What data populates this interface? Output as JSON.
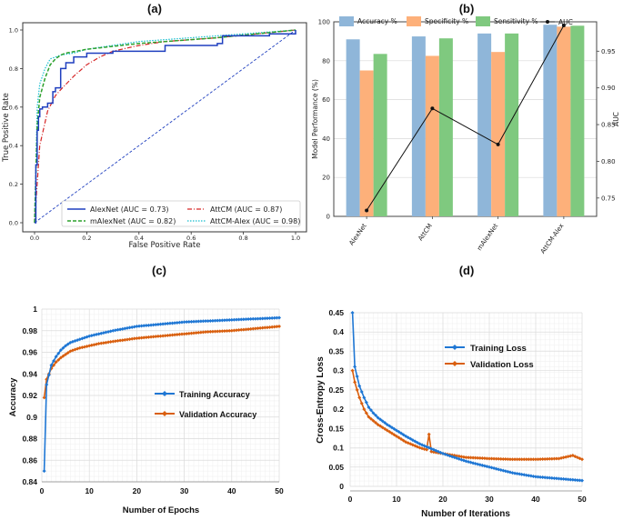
{
  "panel_labels": [
    "(a)",
    "(b)",
    "(c)",
    "(d)"
  ],
  "colors": {
    "alexnet": "#1f3fbf",
    "malexnet": "#2ca02c",
    "attcm": "#d62728",
    "attcm_alex": "#17becf",
    "accuracy": "#8fb6d9",
    "specificity": "#fdb07a",
    "sensitivity": "#7fc97f",
    "auc": "#111111",
    "train": "#1f77d4",
    "val": "#d95f0e"
  },
  "chart_data": [
    {
      "type": "line",
      "title": "(a)",
      "xlabel": "False Positive Rate",
      "ylabel": "True Positive Rate",
      "xlim": [
        0,
        1
      ],
      "ylim": [
        0,
        1
      ],
      "xticks": [
        "0.0",
        "0.2",
        "0.4",
        "0.6",
        "0.8",
        "1.0"
      ],
      "yticks": [
        "0.0",
        "0.2",
        "0.4",
        "0.6",
        "0.8",
        "1.0"
      ],
      "legend": [
        "AlexNet (AUC = 0.73)",
        "mAlexNet (AUC = 0.82)",
        "AttCM (AUC = 0.87)",
        "AttCM-Alex (AUC = 0.98)"
      ],
      "series": [
        {
          "name": "AlexNet (AUC = 0.73)",
          "x": [
            0,
            0.005,
            0.01,
            0.015,
            0.02,
            0.03,
            0.05,
            0.07,
            0.08,
            0.1,
            0.12,
            0.15,
            0.2,
            0.3,
            0.5,
            0.7,
            0.72,
            0.8,
            0.9,
            1.0
          ],
          "y": [
            0,
            0.3,
            0.48,
            0.55,
            0.59,
            0.6,
            0.62,
            0.68,
            0.7,
            0.8,
            0.83,
            0.86,
            0.88,
            0.89,
            0.92,
            0.93,
            0.97,
            0.97,
            0.98,
            1.0
          ]
        },
        {
          "name": "mAlexNet (AUC = 0.82)",
          "x": [
            0,
            0.01,
            0.02,
            0.04,
            0.06,
            0.08,
            0.1,
            0.12,
            0.2,
            0.4,
            0.7,
            1.0
          ],
          "y": [
            0,
            0.5,
            0.65,
            0.75,
            0.82,
            0.85,
            0.87,
            0.88,
            0.9,
            0.93,
            0.96,
            1.0
          ]
        },
        {
          "name": "AttCM (AUC = 0.87)",
          "x": [
            0,
            0.02,
            0.05,
            0.08,
            0.1,
            0.15,
            0.2,
            0.25,
            0.3,
            0.4,
            0.5,
            0.7,
            1.0
          ],
          "y": [
            0,
            0.4,
            0.58,
            0.66,
            0.69,
            0.76,
            0.82,
            0.86,
            0.89,
            0.92,
            0.94,
            0.96,
            1.0
          ]
        },
        {
          "name": "AttCM-Alex (AUC = 0.98)",
          "x": [
            0,
            0.01,
            0.02,
            0.04,
            0.06,
            0.1,
            0.15,
            0.2,
            0.4,
            0.7,
            1.0
          ],
          "y": [
            0,
            0.6,
            0.72,
            0.8,
            0.85,
            0.87,
            0.88,
            0.9,
            0.94,
            0.97,
            1.0
          ]
        },
        {
          "name": "chance",
          "x": [
            0,
            1
          ],
          "y": [
            0,
            1
          ]
        }
      ]
    },
    {
      "type": "bar",
      "title": "(b)",
      "xlabel": "",
      "ylabel": "Model Performance (%)",
      "y2label": "AUC",
      "categories": [
        "AlexNet",
        "AttCM",
        "mAlexNet",
        "AttCM-Alex"
      ],
      "ylim": [
        0,
        100
      ],
      "y2lim": [
        0.725,
        0.99
      ],
      "yticks": [
        "0",
        "20",
        "40",
        "60",
        "80",
        "100"
      ],
      "y2ticks": [
        "0.75",
        "0.80",
        "0.85",
        "0.90",
        "0.95"
      ],
      "legend": [
        "Accuracy %",
        "Specificity %",
        "Sensitivity %",
        "AUC"
      ],
      "series": [
        {
          "name": "Accuracy %",
          "values": [
            91,
            92.5,
            94,
            98.5
          ]
        },
        {
          "name": "Specificity %",
          "values": [
            75,
            82.5,
            84.5,
            97.5
          ]
        },
        {
          "name": "Sensitivity %",
          "values": [
            83.5,
            91.5,
            94,
            98
          ]
        },
        {
          "name": "AUC",
          "values": [
            0.733,
            0.872,
            0.823,
            0.985
          ]
        }
      ]
    },
    {
      "type": "line",
      "title": "(c)",
      "xlabel": "Number of Epochs",
      "ylabel": "Accuracy",
      "xlim": [
        0,
        50
      ],
      "ylim": [
        0.84,
        1.0
      ],
      "xticks": [
        "0",
        "10",
        "20",
        "30",
        "40",
        "50"
      ],
      "yticks": [
        "0.84",
        "0.86",
        "0.88",
        "0.9",
        "0.92",
        "0.94",
        "0.96",
        "0.98",
        "1"
      ],
      "legend": [
        "Training Accuracy",
        "Validation Accuracy"
      ],
      "series": [
        {
          "name": "Training Accuracy",
          "x": [
            0.5,
            1,
            2,
            3,
            4,
            5,
            6,
            8,
            10,
            12,
            15,
            20,
            25,
            30,
            35,
            40,
            45,
            50
          ],
          "y": [
            0.85,
            0.93,
            0.948,
            0.956,
            0.962,
            0.966,
            0.969,
            0.972,
            0.975,
            0.977,
            0.98,
            0.984,
            0.986,
            0.988,
            0.989,
            0.99,
            0.991,
            0.992
          ]
        },
        {
          "name": "Validation Accuracy",
          "x": [
            0.5,
            1,
            2,
            3,
            4,
            5,
            6,
            8,
            10,
            12,
            15,
            20,
            25,
            30,
            35,
            40,
            45,
            50
          ],
          "y": [
            0.918,
            0.935,
            0.945,
            0.951,
            0.955,
            0.958,
            0.961,
            0.964,
            0.966,
            0.968,
            0.97,
            0.973,
            0.975,
            0.977,
            0.979,
            0.98,
            0.982,
            0.984
          ]
        }
      ]
    },
    {
      "type": "line",
      "title": "(d)",
      "xlabel": "Number of Iterations",
      "ylabel": "Cross-Entropy Loss",
      "xlim": [
        0,
        50
      ],
      "ylim": [
        0,
        0.45
      ],
      "xticks": [
        "0",
        "10",
        "20",
        "30",
        "40",
        "50"
      ],
      "yticks": [
        "0",
        "0.05",
        "0.1",
        "0.15",
        "0.2",
        "0.25",
        "0.3",
        "0.35",
        "0.4",
        "0.45"
      ],
      "legend": [
        "Training Loss",
        "Validation Loss"
      ],
      "series": [
        {
          "name": "Training Loss",
          "x": [
            0.5,
            1,
            2,
            3,
            4,
            5,
            6,
            8,
            10,
            12,
            15,
            20,
            25,
            30,
            35,
            40,
            45,
            50
          ],
          "y": [
            0.45,
            0.31,
            0.26,
            0.23,
            0.205,
            0.19,
            0.178,
            0.16,
            0.145,
            0.13,
            0.11,
            0.085,
            0.065,
            0.05,
            0.035,
            0.025,
            0.02,
            0.015
          ]
        },
        {
          "name": "Validation Loss",
          "x": [
            0.5,
            1,
            2,
            3,
            4,
            5,
            6,
            8,
            10,
            12,
            15,
            16.5,
            17,
            17.5,
            20,
            25,
            30,
            35,
            40,
            45,
            48,
            50
          ],
          "y": [
            0.3,
            0.27,
            0.23,
            0.2,
            0.18,
            0.17,
            0.16,
            0.145,
            0.13,
            0.115,
            0.1,
            0.095,
            0.135,
            0.09,
            0.085,
            0.075,
            0.072,
            0.07,
            0.07,
            0.072,
            0.08,
            0.07
          ]
        }
      ]
    }
  ]
}
